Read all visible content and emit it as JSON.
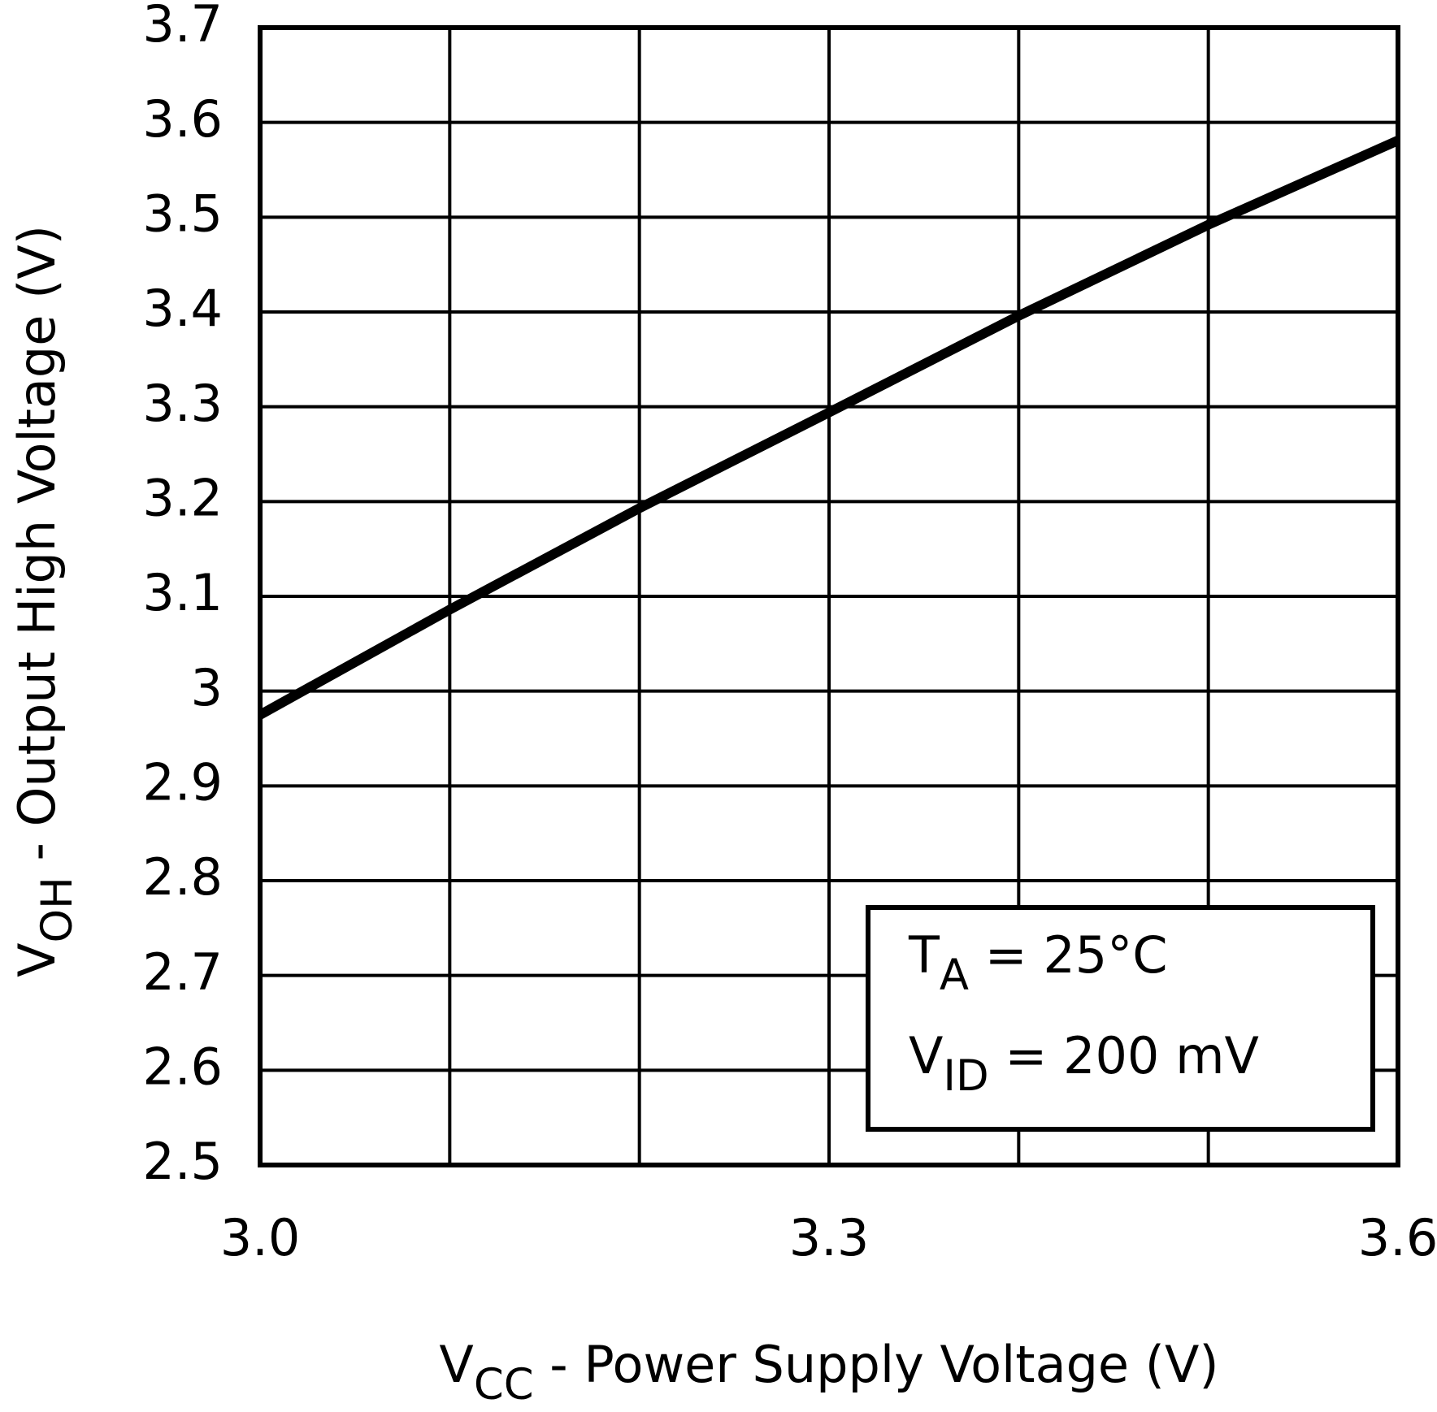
{
  "chart_data": {
    "type": "line",
    "ylabel": {
      "main": "V",
      "sub": "OH",
      "rest": " - Output High Voltage (V)"
    },
    "xlabel": {
      "main": "V",
      "sub": "CC",
      "rest": " - Power Supply Voltage (V)"
    },
    "annotations": [
      {
        "main": "T",
        "sub": "A",
        "rest": " = 25°C"
      },
      {
        "main": "V",
        "sub": "ID",
        "rest": " = 200 mV"
      }
    ],
    "x": [
      3.0,
      3.1,
      3.2,
      3.3,
      3.4,
      3.5,
      3.6
    ],
    "series": [
      {
        "color": "#000000",
        "values": [
          2.975,
          3.086,
          3.193,
          3.294,
          3.396,
          3.492,
          3.581
        ]
      }
    ],
    "xlim": [
      3.0,
      3.6
    ],
    "xticks": [
      {
        "value": 3,
        "label": "3.0"
      },
      {
        "value": 3.3,
        "label": "3.3"
      },
      {
        "value": 3.6,
        "label": "3.6"
      }
    ],
    "xgrid_minor": [
      3.1,
      3.2,
      3.4,
      3.5
    ],
    "ylim": [
      2.5,
      3.7
    ],
    "yticks": [
      2.5,
      2.6,
      2.7,
      2.8,
      2.9,
      3,
      3.1,
      3.2,
      3.3,
      3.4,
      3.5,
      3.6,
      3.7
    ],
    "grid": true
  }
}
